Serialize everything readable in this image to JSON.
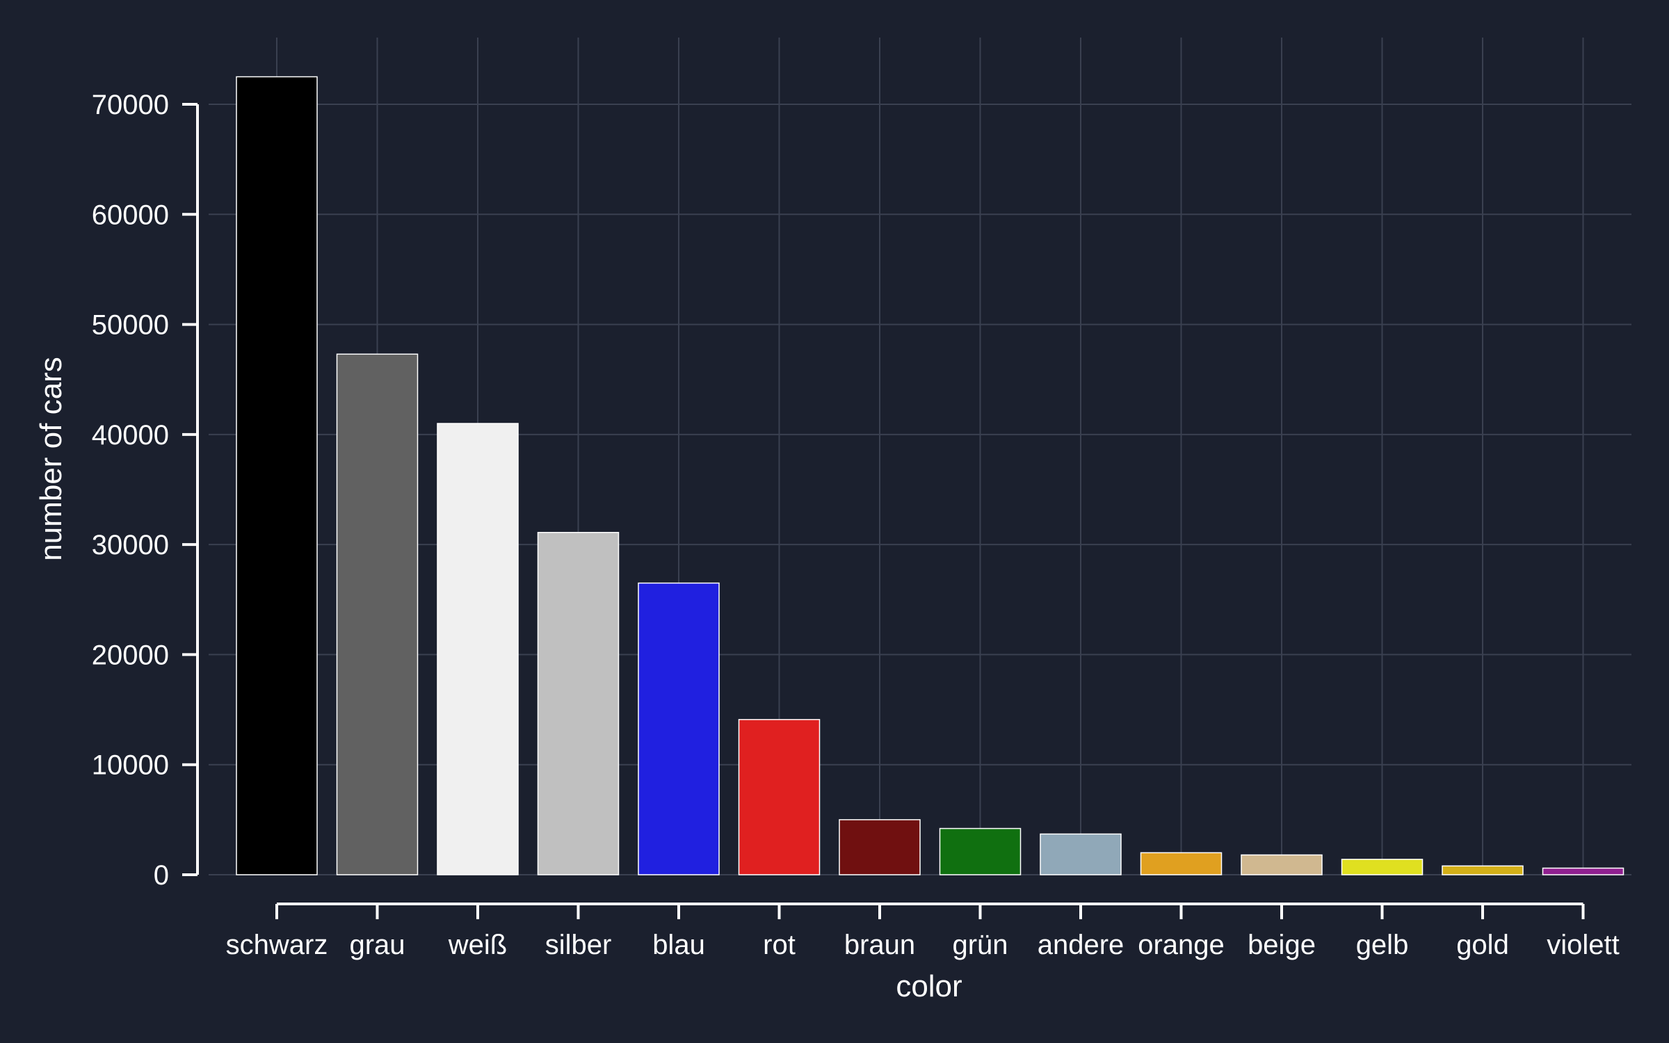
{
  "chart_data": {
    "type": "bar",
    "title": "",
    "xlabel": "color",
    "ylabel": "number of cars",
    "ylim": [
      0,
      72500
    ],
    "yticks": [
      "0",
      "10000",
      "20000",
      "30000",
      "40000",
      "50000",
      "60000",
      "70000"
    ],
    "grid": true,
    "categories": [
      "schwarz",
      "grau",
      "weiß",
      "silber",
      "blau",
      "rot",
      "braun",
      "grün",
      "andere",
      "orange",
      "beige",
      "gelb",
      "gold",
      "violett"
    ],
    "values": [
      72500,
      47300,
      41000,
      31100,
      26500,
      14100,
      5000,
      4200,
      3700,
      2000,
      1800,
      1400,
      800,
      600
    ],
    "colors": [
      "#000000",
      "#616161",
      "#f0f0f0",
      "#c0c0c0",
      "#2020e0",
      "#e02020",
      "#701010",
      "#107010",
      "#90a8b8",
      "#e0a020",
      "#d0b890",
      "#e0e020",
      "#d4b018",
      "#902090"
    ]
  }
}
